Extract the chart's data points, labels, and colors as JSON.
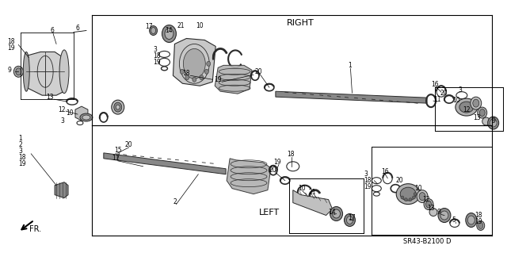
{
  "background_color": "#ffffff",
  "diagram_code": "SR43-B2100 D",
  "label_RIGHT": "RIGHT",
  "label_LEFT": "LEFT",
  "label_FR": "FR.",
  "figsize": [
    6.4,
    3.19
  ],
  "dpi": 100,
  "text_color": "#000000",
  "line_color": "#000000",
  "dark": "#2a2a2a",
  "med": "#4a4a4a",
  "light": "#7a7a7a",
  "vlight": "#aaaaaa",
  "outline": "#000000"
}
